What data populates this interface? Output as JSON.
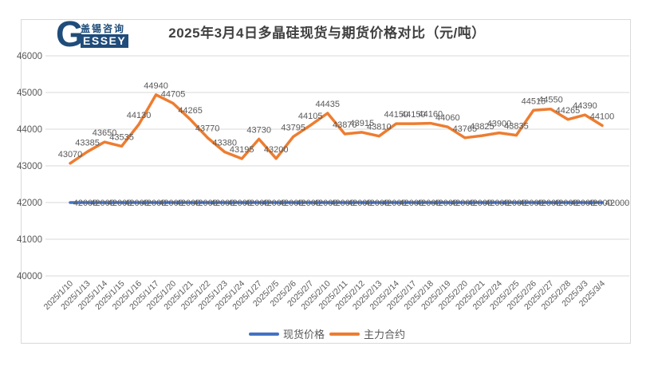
{
  "logo": {
    "g": "G",
    "cn": "盖锡咨询",
    "en": "ESSEY"
  },
  "title": "2025年3月4日多晶硅现货与期货价格对比（元/吨）",
  "chart_data": {
    "type": "line",
    "title": "2025年3月4日多晶硅现货与期货价格对比（元/吨）",
    "x": [
      "2025/1/10",
      "2025/1/13",
      "2025/1/14",
      "2025/1/15",
      "2025/1/16",
      "2025/1/17",
      "2025/1/20",
      "2025/1/21",
      "2025/1/22",
      "2025/1/23",
      "2025/1/24",
      "2025/1/27",
      "2025/2/5",
      "2025/2/6",
      "2025/2/7",
      "2025/2/10",
      "2025/2/11",
      "2025/2/12",
      "2025/2/13",
      "2025/2/14",
      "2025/2/17",
      "2025/2/18",
      "2025/2/19",
      "2025/2/20",
      "2025/2/21",
      "2025/2/24",
      "2025/2/25",
      "2025/2/26",
      "2025/2/27",
      "2025/2/28",
      "2025/3/3",
      "2025/3/4"
    ],
    "series": [
      {
        "name": "现货价格",
        "color": "#4472C4",
        "label_placement": "right",
        "values": [
          42000,
          42000,
          42000,
          42000,
          42000,
          42000,
          42000,
          42000,
          42000,
          42000,
          42000,
          42000,
          42000,
          42000,
          42000,
          42000,
          42000,
          42000,
          42000,
          42000,
          42000,
          42000,
          42000,
          42000,
          42000,
          42000,
          42000,
          42000,
          42000,
          42000,
          42000,
          42000
        ]
      },
      {
        "name": "主力合约",
        "color": "#ED7D31",
        "label_placement": "above",
        "values": [
          43070,
          43385,
          43650,
          43535,
          44130,
          44940,
          44705,
          44265,
          43770,
          43380,
          43195,
          43730,
          43200,
          43795,
          44105,
          44435,
          43870,
          43915,
          43810,
          44150,
          44150,
          44160,
          44060,
          43765,
          43825,
          43900,
          43835,
          44515,
          44550,
          44265,
          44390,
          44100
        ]
      }
    ],
    "ylim": [
      40000,
      46000
    ],
    "ytick_step": 1000,
    "yticks": [
      40000,
      41000,
      42000,
      43000,
      44000,
      45000,
      46000
    ],
    "grid": true,
    "legend_position": "bottom",
    "label_color": "#595959",
    "grid_color": "#d9d9d9"
  }
}
